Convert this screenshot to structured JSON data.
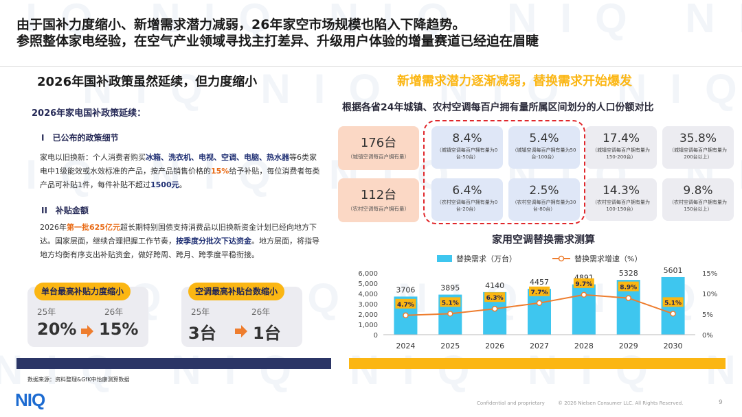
{
  "headline": {
    "line1": "由于国补力度缩小、新增需求潜力减弱，26年家空市场规模也陷入下降趋势。",
    "line2": "参照整体家电经验，在空气产业领域寻找主打差异、升级用户体验的增量赛道已经迫在眉睫"
  },
  "left": {
    "title": "2026年国补政策虽然延续，但力度缩小",
    "subtitle": "2026年家电国补政策延续：",
    "section1": {
      "heading": "I　已公布的政策细节"
    },
    "section2": {
      "heading": "II　补贴金额"
    },
    "p1": {
      "a": "家电以旧换新：个人消费者购买",
      "b": "冰箱、洗衣机、电视、空调、电脑、热水器",
      "c": "等6类家电中1级能效或水效标准的产品，按产品销售价格的",
      "d": "15%",
      "e": "给予补贴，每位消费者每类产品可补贴1件，每件补贴不超过",
      "f": "1500元",
      "g": "。"
    },
    "p2": {
      "a": "2026年",
      "b": "第一批625亿元",
      "c": "超长期特别国债支持消费品以旧换新资金计划已经向地方下达。国家层面，继续合理把握工作节奏，",
      "d": "按季度分批次下达资金",
      "e": "。地方层面，将指导地方均衡有序支出补贴资金，做好跨周、跨月、跨季度平稳衔接。"
    },
    "cards": [
      {
        "label": "单台最高补贴力度缩小",
        "from_year": "25年",
        "to_year": "26年",
        "from_value": "20%",
        "to_value": "15%"
      },
      {
        "label": "空调最高补贴台数缩小",
        "from_year": "25年",
        "to_year": "26年",
        "from_value": "3台",
        "to_value": "1台"
      }
    ]
  },
  "right": {
    "title": "新增需求潜力逐渐减弱，替换需求开始爆发",
    "subtitle": "根据各省24年城镇、农村空调每百户拥有量所属区间划分的人口份额对比",
    "rows": [
      {
        "big": "176台",
        "small": "（城镇空调每百户拥有量）",
        "cells": [
          {
            "pct": "8.4%",
            "desc": "（城镇空调每百户拥有量为0台-50台）"
          },
          {
            "pct": "5.4%",
            "desc": "（城镇空调每百户拥有量为50台-100台）"
          },
          {
            "pct": "17.4%",
            "desc": "（城镇空调每百户拥有量为150-200台）"
          },
          {
            "pct": "35.8%",
            "desc": "（城镇空调每百户拥有量为200台以上）"
          }
        ]
      },
      {
        "big": "112台",
        "small": "（农村空调每百户拥有量）",
        "cells": [
          {
            "pct": "6.4%",
            "desc": "（农村空调每百户拥有量为0台-20台）"
          },
          {
            "pct": "2.5%",
            "desc": "（农村空调每百户拥有量为30台-80台）"
          },
          {
            "pct": "14.3%",
            "desc": "（农村空调每百户拥有量为100-150台）"
          },
          {
            "pct": "9.8%",
            "desc": "（农村空调每百户拥有量为150台以上）"
          }
        ]
      }
    ]
  },
  "chart_data": {
    "type": "bar",
    "title": "家用空调替换需求测算",
    "categories": [
      "2024",
      "2025",
      "2026",
      "2027",
      "2028",
      "2029",
      "2030"
    ],
    "series": [
      {
        "name": "替换需求（万台）",
        "kind": "bar",
        "axis": "left",
        "values": [
          3706,
          3895,
          4140,
          4457,
          4891,
          5328,
          5601
        ]
      },
      {
        "name": "替换需求增速（%）",
        "kind": "line",
        "axis": "right",
        "values": [
          4.7,
          5.1,
          6.3,
          7.7,
          9.7,
          8.9,
          5.1
        ]
      }
    ],
    "bar_labels": [
      "3706",
      "3895",
      "4140",
      "4457",
      "4891",
      "5328",
      "5601"
    ],
    "line_labels": [
      "4.7%",
      "5.1%",
      "6.3%",
      "7.7%",
      "9.7%",
      "8.9%",
      "5.1%"
    ],
    "y_left": {
      "min": 0,
      "max": 6000,
      "ticks": [
        "0",
        "1,000",
        "2,000",
        "3,000",
        "4,000",
        "5,000",
        "6,000"
      ]
    },
    "y_right": {
      "min": 0,
      "max": 15,
      "ticks": [
        "0%",
        "5%",
        "10%",
        "15%"
      ]
    },
    "colors": {
      "bar": "#3ec6ef",
      "line": "#ee7d2e",
      "label_bg": "#fbb613"
    }
  },
  "footer": {
    "source": "数据来源：资料整理&GfK中怡康测算数据",
    "logo": "NIQ",
    "confidential": "Confidential and proprietary",
    "copyright": "© 2026 Nielsen Consumer LLC. All Rights Reserved.",
    "page": "9"
  },
  "watermark": {
    "text": "NIQ"
  }
}
